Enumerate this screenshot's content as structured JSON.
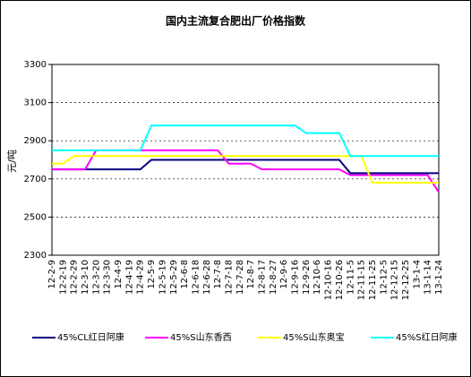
{
  "chart_data": {
    "type": "line",
    "title": "国内主流复合肥出厂价格指数",
    "y_label": "元/吨",
    "categories": [
      "12-2-9",
      "12-2-19",
      "12-2-29",
      "12-3-10",
      "12-3-20",
      "12-3-30",
      "12-4-9",
      "12-4-19",
      "12-4-29",
      "12-5-9",
      "12-5-19",
      "12-5-29",
      "12-6-8",
      "12-6-18",
      "12-6-28",
      "12-7-8",
      "12-7-18",
      "12-7-28",
      "12-8-7",
      "12-8-17",
      "12-8-27",
      "12-9-6",
      "12-9-16",
      "12-9-26",
      "12-10-6",
      "12-10-16",
      "12-10-26",
      "12-11-5",
      "12-11-15",
      "12-11-25",
      "12-12-5",
      "12-12-15",
      "12-12-25",
      "13-1-4",
      "13-1-14",
      "13-1-24"
    ],
    "series": [
      {
        "name": "45%CL红日阿康",
        "color": "#000080",
        "values": [
          2750,
          2750,
          2750,
          2750,
          2750,
          2750,
          2750,
          2750,
          2750,
          2800,
          2800,
          2800,
          2800,
          2800,
          2800,
          2800,
          2800,
          2800,
          2800,
          2800,
          2800,
          2800,
          2800,
          2800,
          2800,
          2800,
          2800,
          2730,
          2730,
          2730,
          2730,
          2730,
          2730,
          2730,
          2730,
          2730
        ]
      },
      {
        "name": "45%S山东香西",
        "color": "#ff00ff",
        "values": [
          2750,
          2750,
          2750,
          2750,
          2850,
          2850,
          2850,
          2850,
          2850,
          2850,
          2850,
          2850,
          2850,
          2850,
          2850,
          2850,
          2780,
          2780,
          2780,
          2750,
          2750,
          2750,
          2750,
          2750,
          2750,
          2750,
          2750,
          2720,
          2720,
          2720,
          2720,
          2720,
          2720,
          2720,
          2720,
          2630
        ]
      },
      {
        "name": "45%S山东奥宝",
        "color": "#ffff00",
        "values": [
          2780,
          2780,
          2820,
          2820,
          2820,
          2820,
          2820,
          2820,
          2820,
          2820,
          2820,
          2820,
          2820,
          2820,
          2820,
          2820,
          2820,
          2820,
          2820,
          2820,
          2820,
          2820,
          2820,
          2820,
          2820,
          2820,
          2820,
          2820,
          2820,
          2680,
          2680,
          2680,
          2680,
          2680,
          2680,
          2680
        ]
      },
      {
        "name": "45%S红日阿康",
        "color": "#00ffff",
        "values": [
          2850,
          2850,
          2850,
          2850,
          2850,
          2850,
          2850,
          2850,
          2850,
          2980,
          2980,
          2980,
          2980,
          2980,
          2980,
          2980,
          2980,
          2980,
          2980,
          2980,
          2980,
          2980,
          2980,
          2940,
          2940,
          2940,
          2940,
          2820,
          2820,
          2820,
          2820,
          2820,
          2820,
          2820,
          2820,
          2820
        ]
      }
    ],
    "ylim": [
      2300,
      3300
    ],
    "yticks": [
      2300,
      2500,
      2700,
      2900,
      3100,
      3300
    ],
    "grid": true
  }
}
